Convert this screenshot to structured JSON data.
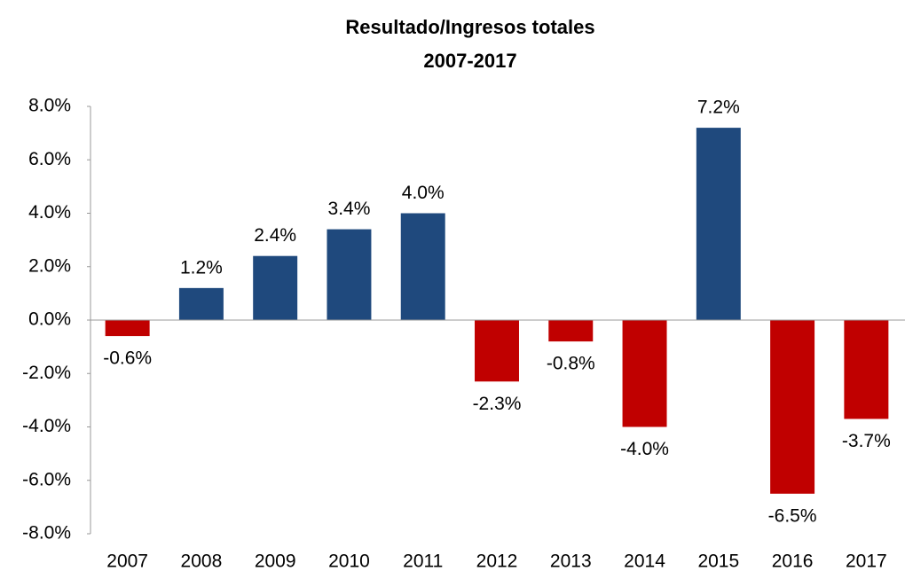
{
  "chart_data": {
    "type": "bar",
    "title": "Resultado/Ingresos totales",
    "subtitle": "2007-2017",
    "categories": [
      "2007",
      "2008",
      "2009",
      "2010",
      "2011",
      "2012",
      "2013",
      "2014",
      "2015",
      "2016",
      "2017"
    ],
    "values": [
      -0.6,
      1.2,
      2.4,
      3.4,
      4.0,
      -2.3,
      -0.8,
      -4.0,
      7.2,
      -6.5,
      -3.7
    ],
    "value_labels": [
      "-0.6%",
      "1.2%",
      "2.4%",
      "3.4%",
      "4.0%",
      "-2.3%",
      "-0.8%",
      "-4.0%",
      "7.2%",
      "-6.5%",
      "-3.7%"
    ],
    "color_positive": "#1f497d",
    "color_negative": "#c00000",
    "ylim": [
      -8,
      8
    ],
    "yticks": [
      {
        "value": -8,
        "label": "-8.0%"
      },
      {
        "value": -6,
        "label": "-6.0%"
      },
      {
        "value": -4,
        "label": "-4.0%"
      },
      {
        "value": -2,
        "label": "-2.0%"
      },
      {
        "value": 0,
        "label": "0.0%"
      },
      {
        "value": 2,
        "label": "2.0%"
      },
      {
        "value": 4,
        "label": "4.0%"
      },
      {
        "value": 6,
        "label": "6.0%"
      },
      {
        "value": 8,
        "label": "8.0%"
      }
    ],
    "grid": false
  }
}
